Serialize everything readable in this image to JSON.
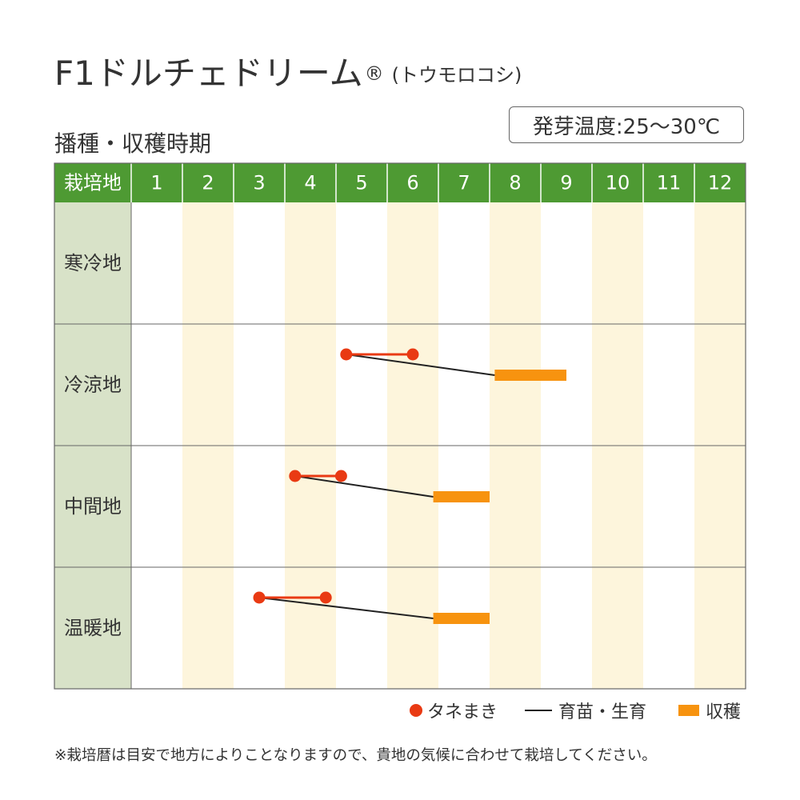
{
  "header": {
    "title": "F1ドルチェドリーム",
    "registered_mark": "®",
    "subtitle": "(トウモロコシ)"
  },
  "section_title": "播種・収穫時期",
  "germination_temp": "発芽温度:25〜30℃",
  "legend": {
    "sowing": "タネまき",
    "growing": "育苗・生育",
    "harvest": "収穫"
  },
  "footnote": "※栽培暦は目安で地方によりことなりますので、貴地の気候に合わせて栽培してください。",
  "colors": {
    "header_green": "#4e9a33",
    "region_col": "#d8e2c8",
    "stripe": "#fdf5dc",
    "sowing_red": "#e93a13",
    "harvest_orange": "#f7930f",
    "growth_line": "#222222"
  },
  "chart_data": {
    "type": "table",
    "corner_label": "栽培地",
    "months": [
      "1",
      "2",
      "3",
      "4",
      "5",
      "6",
      "7",
      "8",
      "9",
      "10",
      "11",
      "12"
    ],
    "regions": [
      {
        "name": "寒冷地",
        "sowing": null,
        "harvest": null
      },
      {
        "name": "冷涼地",
        "sowing": [
          5.2,
          6.5
        ],
        "harvest": [
          8.1,
          9.5
        ]
      },
      {
        "name": "中間地",
        "sowing": [
          4.2,
          5.1
        ],
        "harvest": [
          6.9,
          8.0
        ]
      },
      {
        "name": "温暖地",
        "sowing": [
          3.5,
          4.8
        ],
        "harvest": [
          6.9,
          8.0
        ]
      }
    ]
  }
}
